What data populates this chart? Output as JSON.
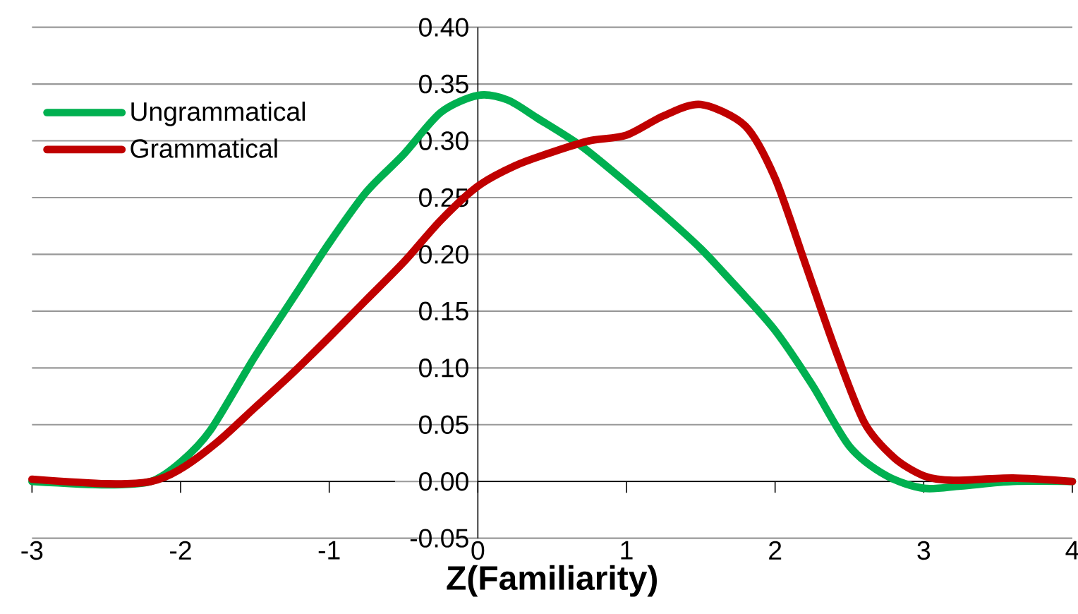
{
  "chart_data": {
    "type": "line",
    "xlabel": "Z(Familiarity)",
    "xlim": [
      -3,
      4
    ],
    "ylim": [
      -0.05,
      0.4
    ],
    "xticks": [
      -3,
      -2,
      -1,
      0,
      1,
      2,
      3,
      4
    ],
    "yticks": [
      {
        "value": -0.05,
        "label": "-0.05"
      },
      {
        "value": 0,
        "label": "0.00"
      },
      {
        "value": 0.05,
        "label": "0.05"
      },
      {
        "value": 0.1,
        "label": "0.10"
      },
      {
        "value": 0.15,
        "label": "0.15"
      },
      {
        "value": 0.2,
        "label": "0.20"
      },
      {
        "value": 0.25,
        "label": "0.25"
      },
      {
        "value": 0.3,
        "label": "0.30"
      },
      {
        "value": 0.35,
        "label": "0.35"
      },
      {
        "value": 0.4,
        "label": "0.40"
      }
    ],
    "grid": "y",
    "legend": "top left",
    "marker": "none",
    "line_style": "solid",
    "series": [
      {
        "name": "Ungrammatical",
        "color": "#00b050",
        "x": [
          -3,
          -2.5,
          -2.2,
          -2,
          -1.8,
          -1.5,
          -1.2,
          -1,
          -0.75,
          -0.5,
          -0.25,
          0,
          0.2,
          0.4,
          0.7,
          1,
          1.25,
          1.5,
          1.75,
          2,
          2.25,
          2.5,
          2.75,
          3,
          3.25,
          3.6,
          4
        ],
        "values": [
          0,
          -0.003,
          0,
          0.017,
          0.045,
          0.11,
          0.17,
          0.21,
          0.255,
          0.288,
          0.325,
          0.34,
          0.336,
          0.32,
          0.295,
          0.263,
          0.235,
          0.205,
          0.17,
          0.133,
          0.085,
          0.031,
          0.005,
          -0.006,
          -0.004,
          0,
          0
        ]
      },
      {
        "name": "Grammatical",
        "color": "#c00000",
        "x": [
          -3,
          -2.5,
          -2.2,
          -2,
          -1.75,
          -1.5,
          -1.25,
          -1,
          -0.75,
          -0.5,
          -0.25,
          0,
          0.25,
          0.5,
          0.75,
          1,
          1.25,
          1.5,
          1.8,
          2,
          2.2,
          2.4,
          2.6,
          2.8,
          3,
          3.2,
          3.6,
          4
        ],
        "values": [
          0.002,
          -0.002,
          0,
          0.011,
          0.035,
          0.065,
          0.095,
          0.127,
          0.16,
          0.193,
          0.23,
          0.26,
          0.278,
          0.29,
          0.3,
          0.305,
          0.322,
          0.332,
          0.313,
          0.267,
          0.193,
          0.118,
          0.052,
          0.021,
          0.005,
          0.001,
          0.003,
          0
        ]
      }
    ]
  }
}
